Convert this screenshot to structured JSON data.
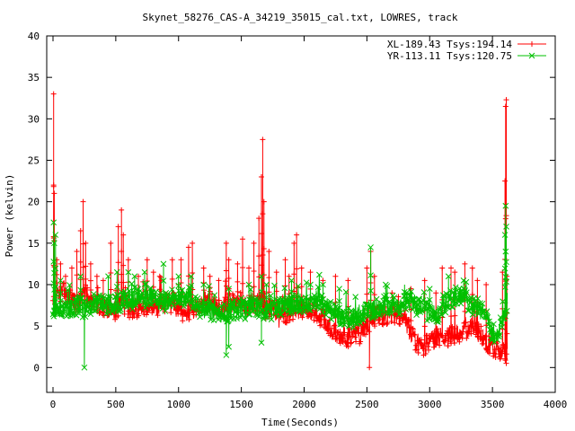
{
  "chart_data": {
    "type": "scatter",
    "title": "Skynet_58276_CAS-A_34219_35015_cal.txt, LOWRES, track",
    "xlabel": "Time(Seconds)",
    "ylabel": "Power (kelvin)",
    "xlim": [
      -50,
      4000
    ],
    "ylim": [
      -3,
      40
    ],
    "xticks": [
      0,
      500,
      1000,
      1500,
      2000,
      2500,
      3000,
      3500,
      4000
    ],
    "yticks": [
      0,
      5,
      10,
      15,
      20,
      25,
      30,
      35,
      40
    ],
    "grid": false,
    "legend_position": "top-right",
    "series": [
      {
        "name": "XL-189.43 Tsys:194.14",
        "color": "#ff0000",
        "marker": "plus",
        "base": [
          [
            0,
            8
          ],
          [
            30,
            9
          ],
          [
            100,
            9
          ],
          [
            150,
            8.5
          ],
          [
            200,
            7.5
          ],
          [
            250,
            9
          ],
          [
            300,
            8
          ],
          [
            350,
            7.5
          ],
          [
            400,
            7.5
          ],
          [
            450,
            7
          ],
          [
            500,
            7
          ],
          [
            550,
            8
          ],
          [
            600,
            7
          ],
          [
            650,
            7
          ],
          [
            700,
            7.2
          ],
          [
            750,
            7.3
          ],
          [
            800,
            7.5
          ],
          [
            850,
            7.5
          ],
          [
            900,
            7.8
          ],
          [
            950,
            7.8
          ],
          [
            1000,
            7
          ],
          [
            1050,
            6.5
          ],
          [
            1100,
            7
          ],
          [
            1150,
            7
          ],
          [
            1200,
            8
          ],
          [
            1250,
            8
          ],
          [
            1300,
            7.5
          ],
          [
            1350,
            7
          ],
          [
            1400,
            8
          ],
          [
            1450,
            7.5
          ],
          [
            1500,
            8
          ],
          [
            1550,
            7.2
          ],
          [
            1600,
            7.5
          ],
          [
            1650,
            8
          ],
          [
            1700,
            7
          ],
          [
            1750,
            7
          ],
          [
            1800,
            6
          ],
          [
            1850,
            6
          ],
          [
            1900,
            6.5
          ],
          [
            1950,
            7
          ],
          [
            2000,
            7
          ],
          [
            2050,
            7
          ],
          [
            2100,
            6.5
          ],
          [
            2150,
            6
          ],
          [
            2200,
            5
          ],
          [
            2250,
            4
          ],
          [
            2300,
            4
          ],
          [
            2350,
            3.5
          ],
          [
            2400,
            4
          ],
          [
            2450,
            4
          ],
          [
            2500,
            5
          ],
          [
            2550,
            6
          ],
          [
            2600,
            6.5
          ],
          [
            2650,
            6
          ],
          [
            2700,
            6.5
          ],
          [
            2750,
            6.5
          ],
          [
            2800,
            6
          ],
          [
            2850,
            4
          ],
          [
            2900,
            3
          ],
          [
            2950,
            2.5
          ],
          [
            3000,
            3
          ],
          [
            3050,
            3.5
          ],
          [
            3100,
            3.5
          ],
          [
            3150,
            3.5
          ],
          [
            3200,
            4
          ],
          [
            3250,
            4
          ],
          [
            3300,
            4.5
          ],
          [
            3350,
            5
          ],
          [
            3400,
            4
          ],
          [
            3450,
            3
          ],
          [
            3500,
            2.5
          ],
          [
            3550,
            2
          ],
          [
            3600,
            1.5
          ],
          [
            3620,
            1
          ]
        ],
        "spikes": [
          [
            5,
            33
          ],
          [
            5,
            22
          ],
          [
            10,
            21
          ],
          [
            30,
            13
          ],
          [
            60,
            12.5
          ],
          [
            100,
            11
          ],
          [
            150,
            12
          ],
          [
            190,
            14
          ],
          [
            220,
            16.5
          ],
          [
            240,
            20
          ],
          [
            260,
            15
          ],
          [
            300,
            12.5
          ],
          [
            350,
            11
          ],
          [
            400,
            10.5
          ],
          [
            460,
            15
          ],
          [
            520,
            17
          ],
          [
            545,
            19
          ],
          [
            560,
            16
          ],
          [
            600,
            13
          ],
          [
            680,
            11
          ],
          [
            750,
            13
          ],
          [
            800,
            11.5
          ],
          [
            850,
            11
          ],
          [
            950,
            13
          ],
          [
            1000,
            10
          ],
          [
            1020,
            13
          ],
          [
            1080,
            14.5
          ],
          [
            1110,
            15
          ],
          [
            1200,
            12
          ],
          [
            1250,
            11
          ],
          [
            1320,
            10.5
          ],
          [
            1380,
            15
          ],
          [
            1400,
            13
          ],
          [
            1470,
            12.5
          ],
          [
            1510,
            15.5
          ],
          [
            1560,
            12
          ],
          [
            1600,
            15
          ],
          [
            1640,
            18
          ],
          [
            1660,
            23
          ],
          [
            1670,
            27.5
          ],
          [
            1680,
            20
          ],
          [
            1720,
            14
          ],
          [
            1780,
            11.5
          ],
          [
            1850,
            13
          ],
          [
            1880,
            11
          ],
          [
            1920,
            15
          ],
          [
            1940,
            16
          ],
          [
            1980,
            12
          ],
          [
            2050,
            11.5
          ],
          [
            2150,
            10.5
          ],
          [
            2250,
            11
          ],
          [
            2350,
            10.5
          ],
          [
            2500,
            12
          ],
          [
            2530,
            14
          ],
          [
            2560,
            11
          ],
          [
            2700,
            9
          ],
          [
            2850,
            9.5
          ],
          [
            2960,
            10.5
          ],
          [
            3050,
            9
          ],
          [
            3100,
            12
          ],
          [
            3170,
            12
          ],
          [
            3200,
            11.5
          ],
          [
            3280,
            12.5
          ],
          [
            3340,
            12
          ],
          [
            3380,
            10.5
          ],
          [
            3450,
            10
          ],
          [
            3580,
            11.5
          ],
          [
            3600,
            22.5
          ],
          [
            3605,
            31.5
          ],
          [
            3610,
            32.3
          ],
          [
            3615,
            11
          ]
        ],
        "drops": [
          [
            2520,
            0
          ],
          [
            3610,
            0.5
          ]
        ]
      },
      {
        "name": "YR-113.11 Tsys:120.75",
        "color": "#00c000",
        "marker": "cross",
        "base": [
          [
            0,
            7
          ],
          [
            50,
            7
          ],
          [
            100,
            7
          ],
          [
            150,
            7
          ],
          [
            200,
            7.5
          ],
          [
            250,
            7
          ],
          [
            300,
            7.5
          ],
          [
            350,
            8
          ],
          [
            400,
            7.5
          ],
          [
            450,
            7.5
          ],
          [
            500,
            7.5
          ],
          [
            550,
            8
          ],
          [
            600,
            8.5
          ],
          [
            650,
            8
          ],
          [
            700,
            8
          ],
          [
            750,
            8.5
          ],
          [
            800,
            8.5
          ],
          [
            850,
            8
          ],
          [
            900,
            8
          ],
          [
            950,
            8.5
          ],
          [
            1000,
            8.5
          ],
          [
            1050,
            8.5
          ],
          [
            1100,
            8.5
          ],
          [
            1150,
            7.5
          ],
          [
            1200,
            7
          ],
          [
            1250,
            7
          ],
          [
            1300,
            6.5
          ],
          [
            1350,
            6.5
          ],
          [
            1400,
            6.5
          ],
          [
            1450,
            7
          ],
          [
            1500,
            7
          ],
          [
            1550,
            7
          ],
          [
            1600,
            7.5
          ],
          [
            1650,
            7
          ],
          [
            1700,
            6.5
          ],
          [
            1750,
            7
          ],
          [
            1800,
            7
          ],
          [
            1850,
            7.5
          ],
          [
            1900,
            7.5
          ],
          [
            1950,
            8
          ],
          [
            2000,
            7.5
          ],
          [
            2050,
            8
          ],
          [
            2100,
            8
          ],
          [
            2150,
            7.5
          ],
          [
            2200,
            7
          ],
          [
            2250,
            6.5
          ],
          [
            2300,
            6
          ],
          [
            2350,
            6
          ],
          [
            2400,
            6
          ],
          [
            2450,
            6.5
          ],
          [
            2500,
            7
          ],
          [
            2550,
            7
          ],
          [
            2600,
            7.5
          ],
          [
            2650,
            7.5
          ],
          [
            2700,
            7.5
          ],
          [
            2750,
            7.5
          ],
          [
            2800,
            8
          ],
          [
            2850,
            8
          ],
          [
            2900,
            7.5
          ],
          [
            2950,
            7
          ],
          [
            3000,
            6.5
          ],
          [
            3050,
            6
          ],
          [
            3100,
            7.5
          ],
          [
            3150,
            8
          ],
          [
            3200,
            8.5
          ],
          [
            3250,
            8.5
          ],
          [
            3300,
            8
          ],
          [
            3350,
            7.5
          ],
          [
            3400,
            7
          ],
          [
            3450,
            6
          ],
          [
            3500,
            4
          ],
          [
            3550,
            4.5
          ],
          [
            3600,
            7
          ],
          [
            3620,
            8
          ]
        ],
        "spikes": [
          [
            5,
            17.5
          ],
          [
            10,
            15
          ],
          [
            20,
            16
          ],
          [
            60,
            10.5
          ],
          [
            220,
            11
          ],
          [
            440,
            11
          ],
          [
            510,
            11.5
          ],
          [
            600,
            11.5
          ],
          [
            650,
            11
          ],
          [
            730,
            11.5
          ],
          [
            880,
            12.5
          ],
          [
            1000,
            11
          ],
          [
            1100,
            11
          ],
          [
            1200,
            10
          ],
          [
            1400,
            9.5
          ],
          [
            1560,
            10
          ],
          [
            1660,
            11
          ],
          [
            1700,
            10
          ],
          [
            1900,
            10.5
          ],
          [
            2050,
            10
          ],
          [
            2150,
            10
          ],
          [
            2280,
            9.5
          ],
          [
            2530,
            14.5
          ],
          [
            2650,
            10
          ],
          [
            2800,
            10
          ],
          [
            3000,
            9.5
          ],
          [
            3150,
            11
          ],
          [
            3270,
            10.5
          ],
          [
            3600,
            16
          ],
          [
            3605,
            19.5
          ],
          [
            3610,
            17
          ]
        ],
        "drops": [
          [
            250,
            0
          ],
          [
            1380,
            1.5
          ],
          [
            1660,
            3
          ],
          [
            1400,
            2.5
          ]
        ]
      }
    ]
  }
}
